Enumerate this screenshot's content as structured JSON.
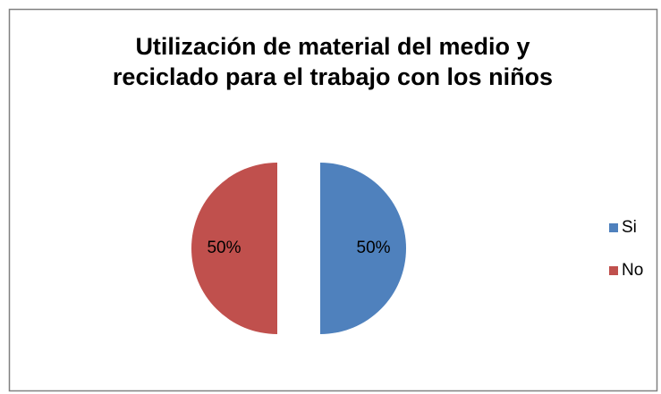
{
  "chart_data": {
    "type": "pie",
    "title": [
      "Utilización de material del medio y",
      "reciclado para el trabajo con los niños"
    ],
    "categories": [
      "Si",
      "No"
    ],
    "values": [
      50,
      50
    ],
    "value_labels": [
      "50%",
      "50%"
    ],
    "colors": [
      "#4f81bd",
      "#c0504d"
    ],
    "exploded": true,
    "legend": "right"
  }
}
